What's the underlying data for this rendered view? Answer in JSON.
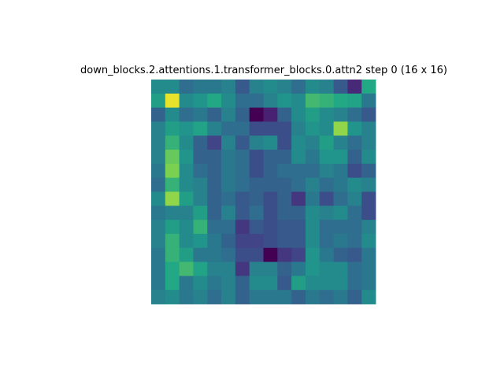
{
  "chart_data": {
    "type": "heatmap",
    "title": "down_blocks.2.attentions.1.transformer_blocks.0.attn2 step 0 (16 x 16)",
    "rows": 16,
    "cols": 16,
    "colormap": "viridis",
    "axes_visible": false,
    "vrange": [
      0,
      1
    ],
    "values": [
      [
        0.6,
        0.6,
        0.45,
        0.5,
        0.5,
        0.55,
        0.35,
        0.55,
        0.6,
        0.55,
        0.45,
        0.6,
        0.55,
        0.35,
        0.15,
        0.75
      ],
      [
        0.7,
        0.98,
        0.6,
        0.65,
        0.75,
        0.6,
        0.45,
        0.45,
        0.55,
        0.65,
        0.6,
        0.8,
        0.78,
        0.75,
        0.72,
        0.5
      ],
      [
        0.4,
        0.6,
        0.45,
        0.5,
        0.4,
        0.55,
        0.4,
        0.0,
        0.12,
        0.4,
        0.6,
        0.7,
        0.6,
        0.55,
        0.45,
        0.35
      ],
      [
        0.55,
        0.7,
        0.65,
        0.72,
        0.55,
        0.45,
        0.45,
        0.3,
        0.3,
        0.3,
        0.55,
        0.65,
        0.6,
        0.9,
        0.65,
        0.55
      ],
      [
        0.55,
        0.78,
        0.6,
        0.4,
        0.25,
        0.55,
        0.35,
        0.55,
        0.6,
        0.3,
        0.6,
        0.55,
        0.7,
        0.55,
        0.45,
        0.55
      ],
      [
        0.55,
        0.85,
        0.65,
        0.4,
        0.4,
        0.5,
        0.45,
        0.3,
        0.4,
        0.4,
        0.6,
        0.5,
        0.65,
        0.65,
        0.4,
        0.6
      ],
      [
        0.5,
        0.88,
        0.6,
        0.45,
        0.4,
        0.5,
        0.45,
        0.3,
        0.4,
        0.45,
        0.45,
        0.45,
        0.55,
        0.5,
        0.3,
        0.4
      ],
      [
        0.45,
        0.78,
        0.6,
        0.55,
        0.4,
        0.5,
        0.45,
        0.4,
        0.4,
        0.4,
        0.45,
        0.55,
        0.45,
        0.5,
        0.6,
        0.55
      ],
      [
        0.6,
        0.9,
        0.7,
        0.55,
        0.4,
        0.45,
        0.35,
        0.4,
        0.3,
        0.4,
        0.2,
        0.5,
        0.3,
        0.45,
        0.55,
        0.3
      ],
      [
        0.5,
        0.55,
        0.55,
        0.7,
        0.4,
        0.55,
        0.35,
        0.45,
        0.3,
        0.4,
        0.4,
        0.6,
        0.55,
        0.6,
        0.45,
        0.3
      ],
      [
        0.55,
        0.7,
        0.6,
        0.78,
        0.45,
        0.45,
        0.2,
        0.35,
        0.3,
        0.35,
        0.35,
        0.6,
        0.45,
        0.45,
        0.45,
        0.55
      ],
      [
        0.55,
        0.78,
        0.6,
        0.65,
        0.5,
        0.4,
        0.25,
        0.25,
        0.3,
        0.35,
        0.35,
        0.6,
        0.45,
        0.5,
        0.45,
        0.6
      ],
      [
        0.5,
        0.78,
        0.7,
        0.5,
        0.5,
        0.45,
        0.3,
        0.3,
        0.0,
        0.2,
        0.25,
        0.65,
        0.5,
        0.4,
        0.35,
        0.5
      ],
      [
        0.5,
        0.75,
        0.8,
        0.72,
        0.55,
        0.55,
        0.2,
        0.55,
        0.55,
        0.4,
        0.5,
        0.65,
        0.6,
        0.6,
        0.45,
        0.5
      ],
      [
        0.5,
        0.75,
        0.5,
        0.6,
        0.5,
        0.55,
        0.4,
        0.6,
        0.6,
        0.35,
        0.7,
        0.6,
        0.6,
        0.6,
        0.45,
        0.5
      ],
      [
        0.55,
        0.6,
        0.5,
        0.55,
        0.45,
        0.55,
        0.4,
        0.5,
        0.5,
        0.5,
        0.4,
        0.5,
        0.45,
        0.5,
        0.4,
        0.6
      ]
    ]
  }
}
